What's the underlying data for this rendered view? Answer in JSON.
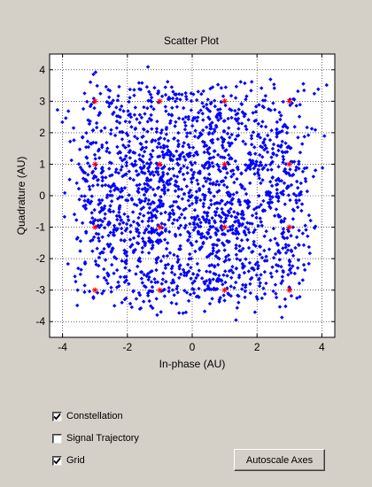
{
  "chart_data": {
    "type": "scatter",
    "title": "Scatter Plot",
    "xlabel": "In-phase (AU)",
    "ylabel": "Quadrature (AU)",
    "xlim": [
      -4.4,
      4.4
    ],
    "ylim": [
      -4.5,
      4.5
    ],
    "xticks": [
      -4,
      -2,
      0,
      2,
      4
    ],
    "yticks": [
      -4,
      -3,
      -2,
      -1,
      0,
      1,
      2,
      3,
      4
    ],
    "grid": true,
    "colors": {
      "signal": "#0000ff",
      "constellation": "#ff0000",
      "grid": "#000000"
    },
    "series": [
      {
        "name": "Constellation",
        "marker": "star",
        "points": [
          [
            -3,
            3
          ],
          [
            -1,
            3
          ],
          [
            1,
            3
          ],
          [
            3,
            3
          ],
          [
            -3,
            1
          ],
          [
            -1,
            1
          ],
          [
            1,
            1
          ],
          [
            3,
            1
          ],
          [
            -3,
            -1
          ],
          [
            -1,
            -1
          ],
          [
            1,
            -1
          ],
          [
            3,
            -1
          ],
          [
            -3,
            -3
          ],
          [
            -1,
            -3
          ],
          [
            1,
            -3
          ],
          [
            3,
            -3
          ]
        ]
      },
      {
        "name": "Signal",
        "marker": "diamond",
        "description_of_distribution": "noisy received symbols scattered around the 16-QAM constellation points and along transition paths between them",
        "points_generated": true
      }
    ]
  },
  "controls": {
    "constellation": {
      "label": "Constellation",
      "checked": true
    },
    "trajectory": {
      "label": "Signal Trajectory",
      "checked": false
    },
    "grid": {
      "label": "Grid",
      "checked": true
    },
    "autoscale_label": "Autoscale Axes"
  }
}
